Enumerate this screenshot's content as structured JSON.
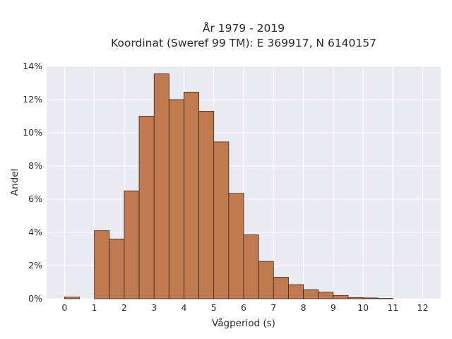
{
  "chart_data": {
    "type": "bar",
    "title": "År 1979 - 2019",
    "subtitle": "Koordinat (Sweref 99 TM): E 369917, N 6140157",
    "xlabel": "Vågperiod (s)",
    "ylabel": "Andel",
    "xlim": [
      -0.6,
      12.6
    ],
    "ylim": [
      0,
      14
    ],
    "x_ticks": [
      "0",
      "1",
      "2",
      "3",
      "4",
      "5",
      "6",
      "7",
      "8",
      "9",
      "10",
      "11",
      "12"
    ],
    "y_ticks": [
      "0%",
      "2%",
      "4%",
      "6%",
      "8%",
      "10%",
      "12%",
      "14%"
    ],
    "grid": true,
    "bin_width": 0.5,
    "bin_starts": [
      0,
      1,
      1.5,
      2,
      2.5,
      3,
      3.5,
      4,
      4.5,
      5,
      5.5,
      6,
      6.5,
      7,
      7.5,
      8,
      8.5,
      9,
      9.5,
      10,
      10.5
    ],
    "values": [
      0.1,
      4.1,
      3.6,
      6.5,
      11.0,
      13.55,
      12.0,
      12.45,
      11.3,
      9.45,
      6.35,
      3.85,
      2.25,
      1.3,
      0.85,
      0.55,
      0.4,
      0.2,
      0.07,
      0.05,
      0.02
    ],
    "bar_color": "#c07a50",
    "edge_color": "#3a2418",
    "background_color": "#eaeaf2",
    "grid_color": "#ffffff"
  }
}
